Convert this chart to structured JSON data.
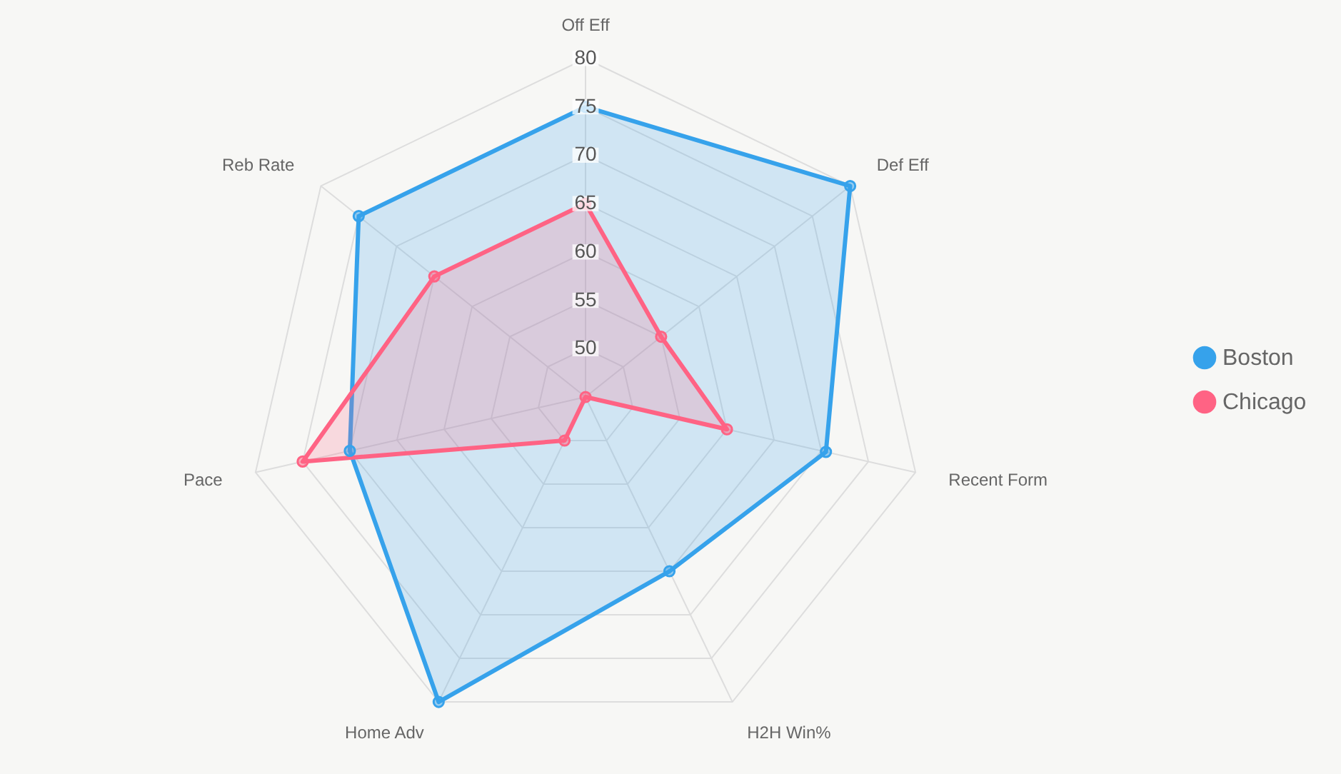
{
  "chart_data": {
    "type": "radar",
    "categories": [
      "Off Eff",
      "Def Eff",
      "Recent Form",
      "H2H Win%",
      "Home Adv",
      "Pace",
      "Reb Rate"
    ],
    "ylim": [
      45,
      80
    ],
    "yticks": [
      50,
      55,
      60,
      65,
      70,
      75,
      80
    ],
    "grid": true,
    "legend": "right",
    "marker": "circle",
    "series": [
      {
        "name": "Boston",
        "color": "#36a2eb",
        "values": [
          75,
          80,
          70.5,
          65,
          80,
          70,
          75
        ]
      },
      {
        "name": "Chicago",
        "color": "#ff6384",
        "values": [
          65,
          55,
          60,
          45,
          50,
          75,
          65
        ]
      }
    ]
  }
}
